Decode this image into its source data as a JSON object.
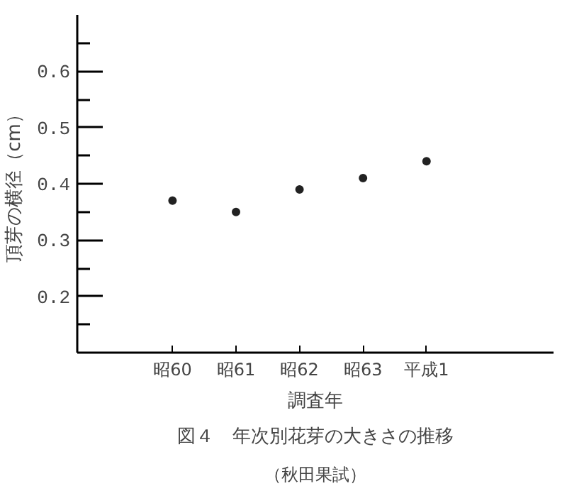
{
  "chart_data": {
    "type": "scatter",
    "title": "図４　年次別花芽の大きさの推移",
    "subtitle": "（秋田果試）",
    "xlabel": "調査年",
    "ylabel": "頂芽の横径（cm）",
    "categories": [
      "昭60",
      "昭61",
      "昭62",
      "昭63",
      "平成1"
    ],
    "series": [
      {
        "color": "#222222",
        "values": [
          0.37,
          0.35,
          0.39,
          0.41,
          0.44
        ]
      }
    ],
    "ylim": [
      0.1,
      0.7
    ],
    "yticks": [
      0.2,
      0.3,
      0.4,
      0.5,
      0.6
    ],
    "marker": "circle",
    "grid": false
  }
}
